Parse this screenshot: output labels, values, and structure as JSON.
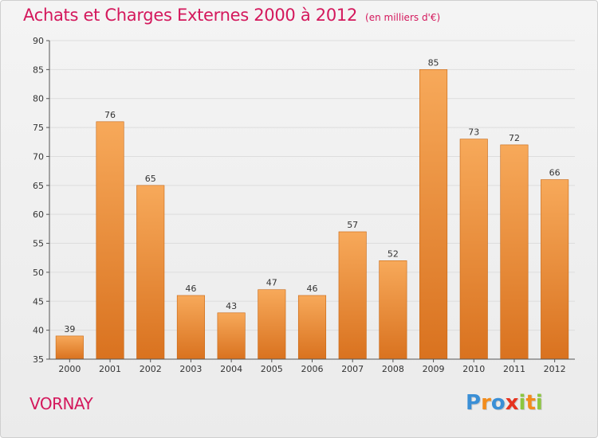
{
  "header": {
    "title": "Achats et Charges Externes 2000 à 2012",
    "subtitle": "(en milliers d'€)"
  },
  "footer": {
    "place": "VORNAY",
    "logo_letters": [
      {
        "ch": "P",
        "color": "#3a8fd6"
      },
      {
        "ch": "r",
        "color": "#f28c1c"
      },
      {
        "ch": "o",
        "color": "#3a8fd6"
      },
      {
        "ch": "x",
        "color": "#e6331f"
      },
      {
        "ch": "i",
        "color": "#8cc63f"
      },
      {
        "ch": "t",
        "color": "#f28c1c"
      },
      {
        "ch": "i",
        "color": "#8cc63f"
      }
    ]
  },
  "colors": {
    "accent": "#d4185c",
    "bar_top": "#f7a95a",
    "bar_bottom": "#d9721f",
    "bar_stroke": "#c86612",
    "grid": "#dddddd"
  },
  "chart_data": {
    "type": "bar",
    "categories": [
      "2000",
      "2001",
      "2002",
      "2003",
      "2004",
      "2005",
      "2006",
      "2007",
      "2008",
      "2009",
      "2010",
      "2011",
      "2012"
    ],
    "values": [
      39,
      76,
      65,
      46,
      43,
      47,
      46,
      57,
      52,
      85,
      73,
      72,
      66
    ],
    "data_labels": [
      "39",
      "76",
      "65",
      "46",
      "43",
      "47",
      "46",
      "57",
      "52",
      "85",
      "73",
      "72",
      "66"
    ],
    "yticks": [
      35,
      40,
      45,
      50,
      55,
      60,
      65,
      70,
      75,
      80,
      85,
      90
    ],
    "ytick_labels": [
      "35",
      "40",
      "45",
      "50",
      "55",
      "60",
      "65",
      "70",
      "75",
      "80",
      "85",
      "90"
    ],
    "ylim": [
      35,
      90
    ],
    "grid": true,
    "xlabel": "",
    "ylabel": ""
  }
}
